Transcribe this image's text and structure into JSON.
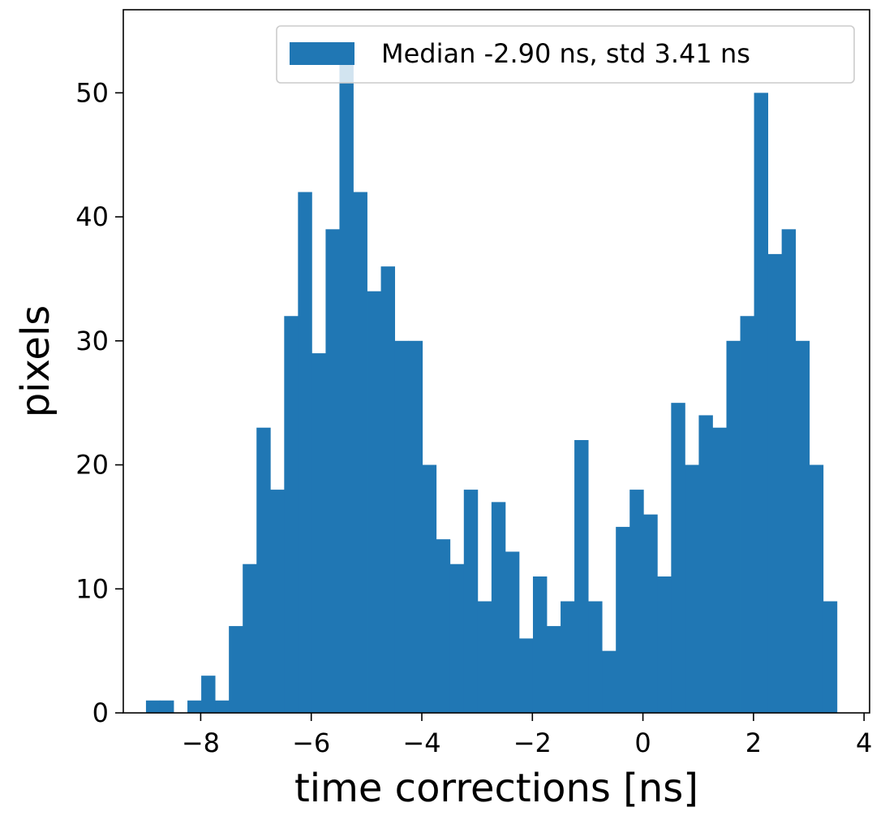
{
  "chart_data": {
    "type": "bar",
    "title": "",
    "xlabel": "time corrections [ns]",
    "ylabel": "pixels",
    "xlim": [
      -9.4,
      4.1
    ],
    "ylim": [
      0,
      56.7
    ],
    "xticks": [
      -8,
      -6,
      -4,
      -2,
      0,
      2,
      4
    ],
    "xtick_labels": [
      "−8",
      "−6",
      "−4",
      "−2",
      "0",
      "2",
      "4"
    ],
    "yticks": [
      0,
      10,
      20,
      30,
      40,
      50
    ],
    "ytick_labels": [
      "0",
      "10",
      "20",
      "30",
      "40",
      "50"
    ],
    "grid": false,
    "legend_position": "top-right",
    "series": [
      {
        "name": "Median -2.90 ns, std 3.41 ns",
        "color": "#2077b4",
        "bin_start": -8.99,
        "bin_width": 0.25,
        "values": [
          1,
          1,
          0,
          1,
          3,
          1,
          7,
          12,
          23,
          18,
          32,
          42,
          29,
          39,
          54,
          42,
          34,
          36,
          30,
          30,
          20,
          14,
          12,
          18,
          9,
          17,
          13,
          6,
          11,
          7,
          9,
          22,
          9,
          5,
          15,
          18,
          16,
          11,
          25,
          20,
          24,
          23,
          30,
          32,
          50,
          37,
          39,
          30,
          20,
          9
        ]
      }
    ]
  }
}
